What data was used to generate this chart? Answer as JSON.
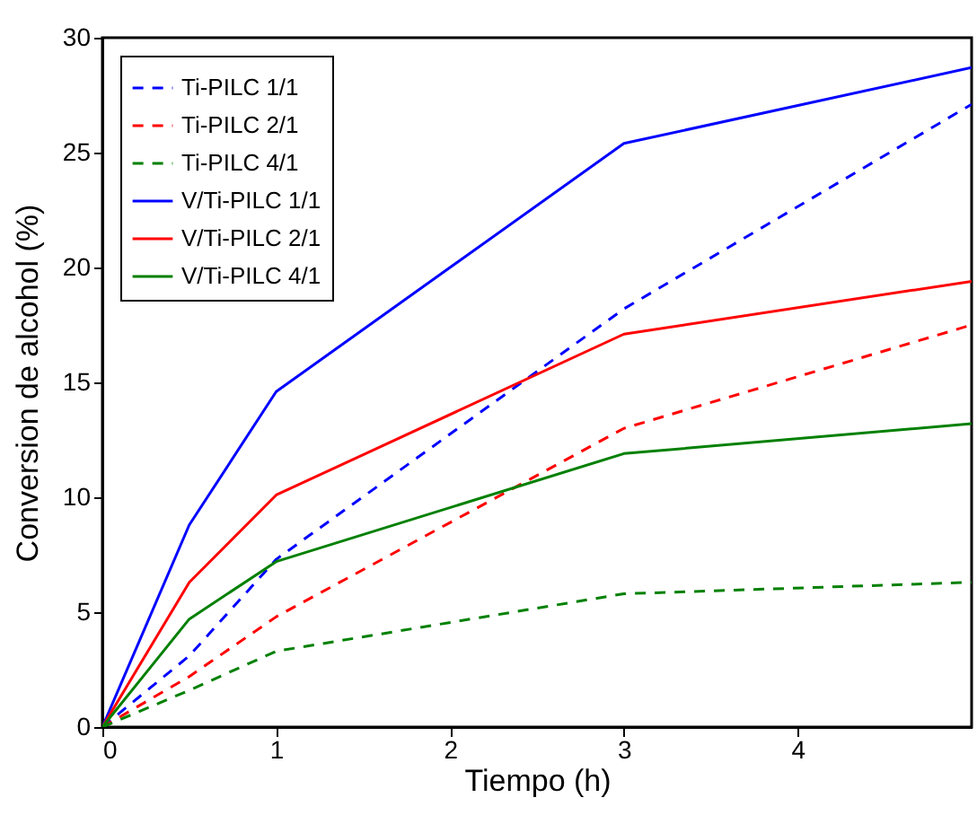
{
  "chart_data": {
    "type": "line",
    "xlabel": "Tiempo (h)",
    "ylabel": "Conversion de alcohol (%)",
    "xlim": [
      0,
      5
    ],
    "xticks": [
      0,
      1,
      2,
      3,
      4
    ],
    "ylim": [
      0,
      30
    ],
    "yticks": [
      0,
      5,
      10,
      15,
      20,
      25,
      30
    ],
    "grid": false,
    "legend": "top left",
    "marker": "none",
    "x": [
      0,
      0.5,
      1,
      3,
      5
    ],
    "series": [
      {
        "name": "Ti-PILC 1/1",
        "color": "#0000ff",
        "line_style": "dashed",
        "values": [
          0,
          3.1,
          7.3,
          18.2,
          27.1
        ]
      },
      {
        "name": "Ti-PILC 2/1",
        "color": "#ff0000",
        "line_style": "dashed",
        "values": [
          0,
          2.2,
          4.8,
          13.0,
          17.5
        ]
      },
      {
        "name": "Ti-PILC 4/1",
        "color": "#008000",
        "line_style": "dashed",
        "values": [
          0,
          1.6,
          3.3,
          5.8,
          6.3
        ]
      },
      {
        "name": "V/Ti-PILC 1/1",
        "color": "#0000ff",
        "line_style": "solid",
        "values": [
          0,
          8.8,
          14.6,
          25.4,
          28.7
        ]
      },
      {
        "name": "V/Ti-PILC 2/1",
        "color": "#ff0000",
        "line_style": "solid",
        "values": [
          0,
          6.3,
          10.1,
          17.1,
          19.4
        ]
      },
      {
        "name": "V/Ti-PILC 4/1",
        "color": "#008000",
        "line_style": "solid",
        "values": [
          0,
          4.7,
          7.2,
          11.9,
          13.2
        ]
      }
    ]
  }
}
